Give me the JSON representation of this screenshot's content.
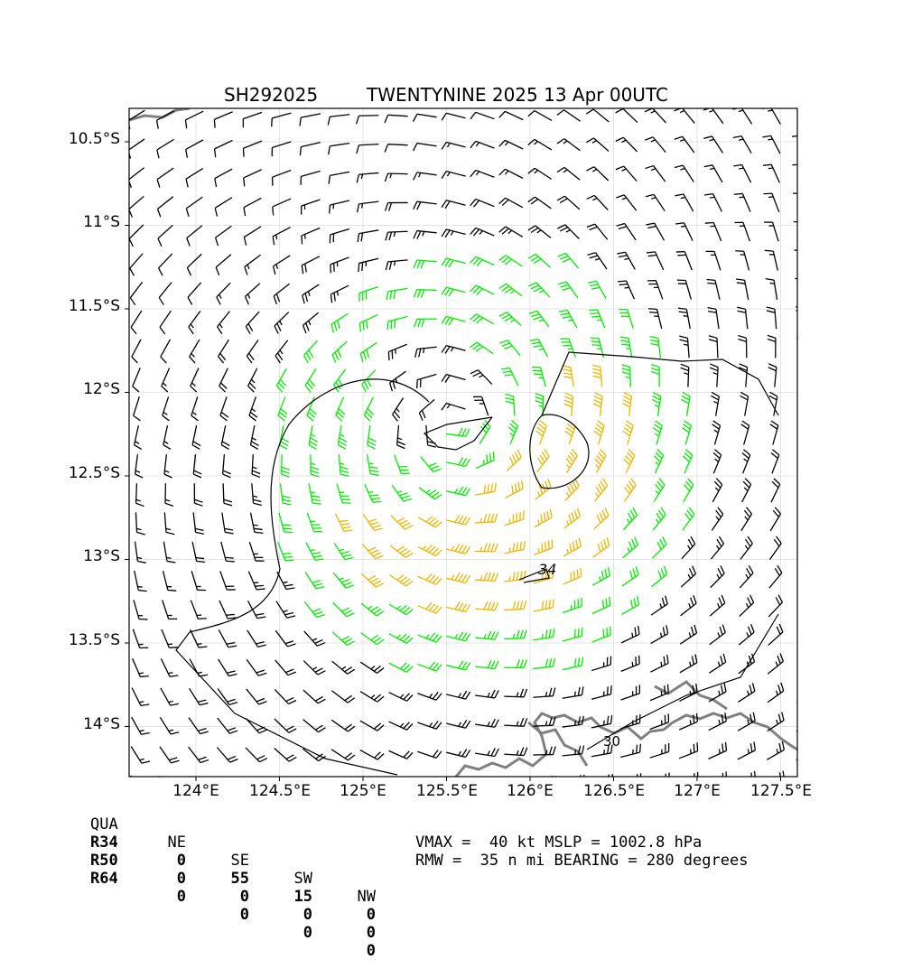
{
  "title": {
    "storm_id": "SH292025",
    "storm_info": "TWENTYNINE 2025 13 Apr 00UTC"
  },
  "lat_ticks": [
    "10.5°S",
    "11°S",
    "11.5°S",
    "12°S",
    "12.5°S",
    "13°S",
    "13.5°S",
    "14°S"
  ],
  "lon_ticks": [
    "124°E",
    "124.5°E",
    "125°E",
    "125.5°E",
    "126°E",
    "126.5°E",
    "127°E",
    "127.5°E"
  ],
  "contour_labels": [
    "34",
    "30"
  ],
  "table": {
    "header": [
      "QUA",
      "NE",
      "SE",
      "SW",
      "NW"
    ],
    "rows": [
      {
        "label": "R34",
        "values": [
          "0",
          "55",
          "15",
          "0"
        ]
      },
      {
        "label": "R50",
        "values": [
          "0",
          "0",
          "0",
          "0"
        ]
      },
      {
        "label": "R64",
        "values": [
          "0",
          "0",
          "0",
          "0"
        ]
      }
    ]
  },
  "stats": {
    "line1": "VMAX =  40 kt MSLP = 1002.8 hPa",
    "line2": "RMW =  35 n mi BEARING = 280 degrees"
  },
  "chart_data": {
    "type": "wind-barb-map",
    "lon_range": [
      123.6,
      127.6
    ],
    "lat_range": [
      -14.3,
      -10.3
    ],
    "center": {
      "lon": 125.55,
      "lat": -12.2
    },
    "vmax_kt": 40,
    "mslp_hpa": 1002.8,
    "rmw_nmi": 35,
    "bearing_deg": 280,
    "colors": {
      "below34": "#000000",
      "gale": "#00ee00",
      "storm": "#f0b400",
      "coast": "#808080"
    }
  }
}
